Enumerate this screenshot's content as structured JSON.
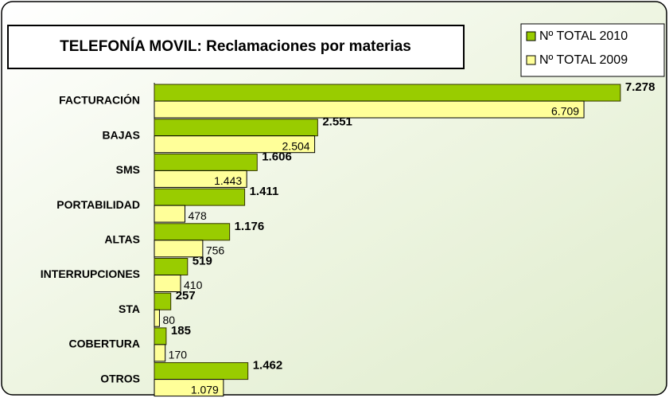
{
  "chart_data": {
    "type": "hbar",
    "title": "TELEFONÍA MOVIL: Reclamaciones por materias",
    "categories": [
      "FACTURACIÓN",
      "BAJAS",
      "SMS",
      "PORTABILIDAD",
      "ALTAS",
      "INTERRUPCIONES",
      "STA",
      "COBERTURA",
      "OTROS"
    ],
    "series": [
      {
        "name": "Nº TOTAL 2010",
        "color": "#99cc00",
        "values": [
          7278,
          2551,
          1606,
          1411,
          1176,
          519,
          257,
          185,
          1462
        ],
        "value_labels": [
          "7.278",
          "2.551",
          "1.606",
          "1.411",
          "1.176",
          "519",
          "257",
          "185",
          "1.462"
        ]
      },
      {
        "name": "Nº TOTAL 2009",
        "color": "#ffff99",
        "values": [
          6709,
          2504,
          1443,
          478,
          756,
          410,
          80,
          170,
          1079
        ],
        "value_labels": [
          "6.709",
          "2.504",
          "1.443",
          "478",
          "756",
          "410",
          "80",
          "170",
          "1.079"
        ]
      }
    ],
    "xlim": [
      0,
      8000
    ],
    "legend": "top-right"
  }
}
